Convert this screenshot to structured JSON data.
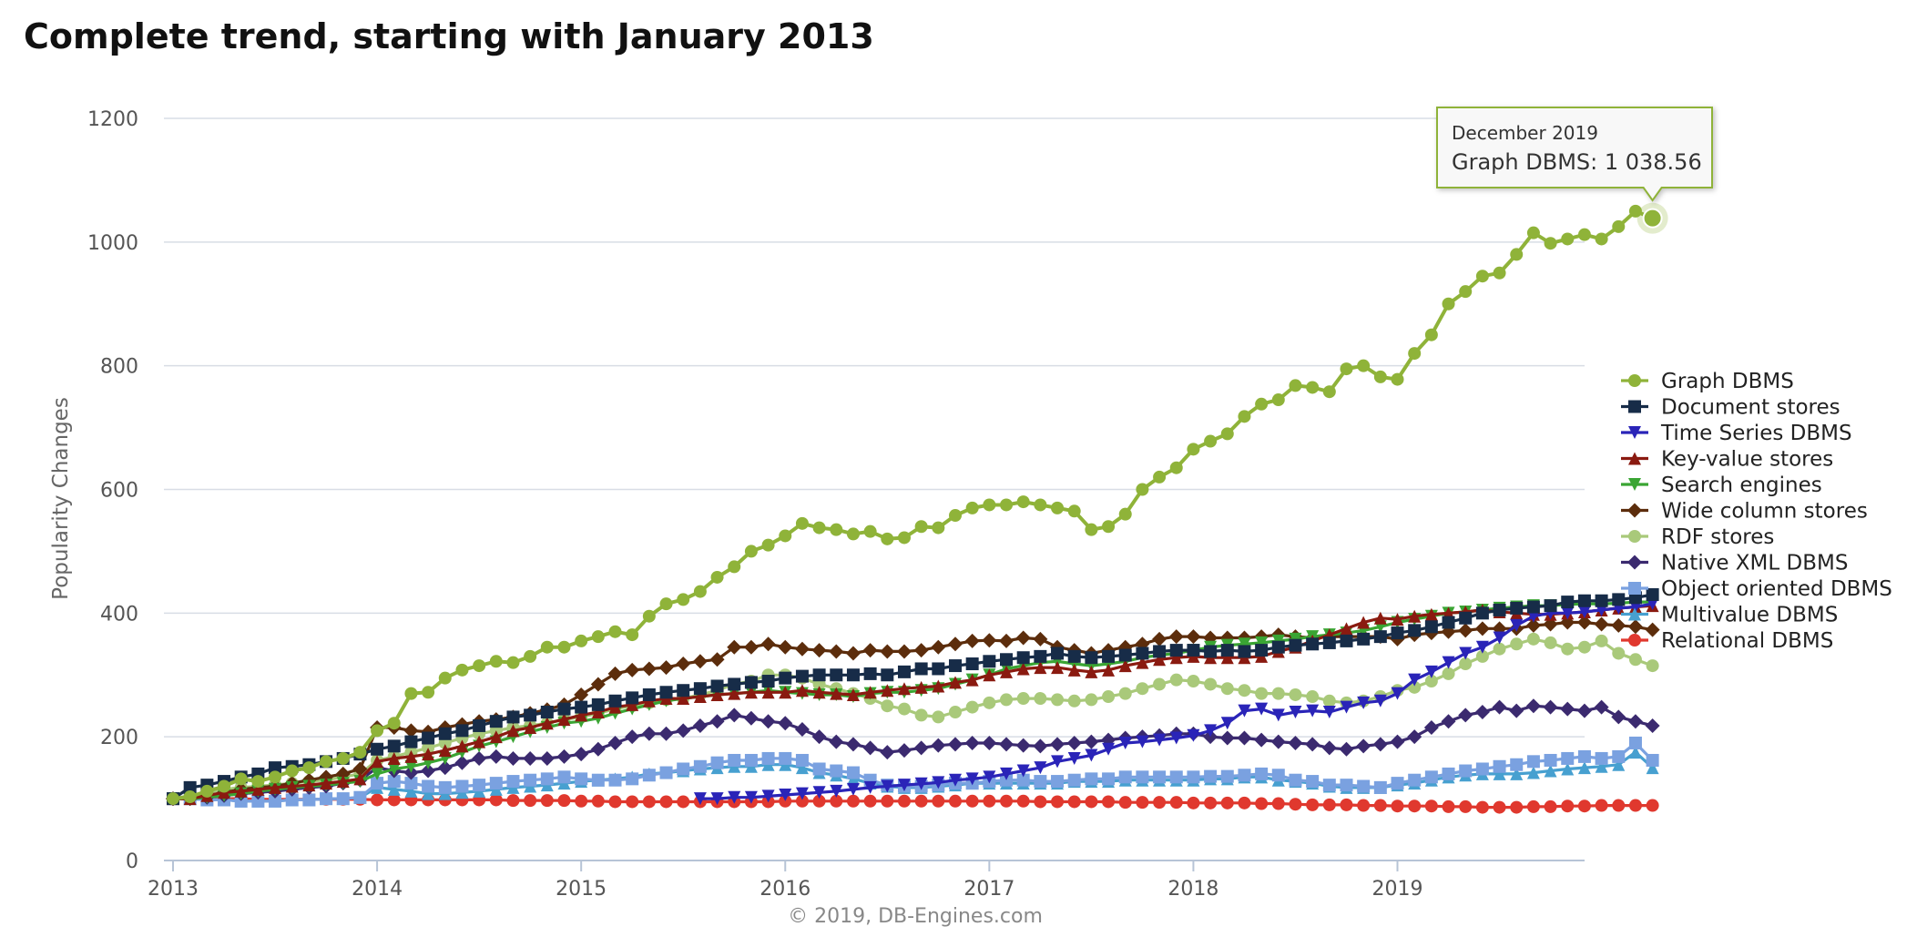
{
  "page": {
    "title": "Complete trend, starting with January 2013"
  },
  "chart_data": {
    "type": "line",
    "title": "Complete trend, starting with January 2013",
    "xlabel": "",
    "ylabel": "Popularity Changes",
    "xlim": [
      2013.0,
      2019.917
    ],
    "ylim": [
      0,
      1200
    ],
    "yticks": [
      0,
      200,
      400,
      600,
      800,
      1000,
      1200
    ],
    "xticks": [
      2013,
      2014,
      2015,
      2016,
      2017,
      2018,
      2019
    ],
    "xtick_labels": [
      "2013",
      "2014",
      "2015",
      "2016",
      "2017",
      "2018",
      "2019"
    ],
    "grid": true,
    "legend_position": "right",
    "credits": "© 2019, DB-Engines.com",
    "x_start": "2013-01",
    "x_step": "monthly",
    "tooltip": {
      "header": "December 2019",
      "series": "Graph DBMS",
      "value_label": "1 038.56",
      "value": 1038.56
    },
    "series": [
      {
        "name": "Graph DBMS",
        "color": "#8fb339",
        "marker": "circle",
        "values": [
          100,
          103,
          112,
          120,
          132,
          128,
          135,
          145,
          150,
          160,
          165,
          175,
          210,
          222,
          270,
          272,
          295,
          308,
          315,
          322,
          320,
          330,
          345,
          345,
          355,
          362,
          370,
          365,
          395,
          415,
          422,
          435,
          458,
          475,
          500,
          510,
          525,
          545,
          538,
          535,
          528,
          532,
          520,
          522,
          540,
          538,
          558,
          570,
          575,
          575,
          580,
          575,
          570,
          565,
          535,
          540,
          560,
          600,
          620,
          635,
          665,
          678,
          690,
          718,
          738,
          745,
          768,
          765,
          758,
          795,
          800,
          782,
          778,
          820,
          850,
          900,
          920,
          945,
          950,
          980,
          1015,
          998,
          1005,
          1012,
          1005,
          1025,
          1050,
          1038.56
        ]
      },
      {
        "name": "Document stores",
        "color": "#172c48",
        "marker": "square",
        "values": [
          100,
          118,
          122,
          128,
          135,
          140,
          150,
          152,
          155,
          160,
          165,
          172,
          180,
          185,
          192,
          198,
          205,
          210,
          218,
          225,
          232,
          235,
          240,
          245,
          248,
          252,
          258,
          263,
          268,
          272,
          275,
          278,
          282,
          285,
          288,
          290,
          295,
          298,
          300,
          300,
          300,
          302,
          300,
          305,
          310,
          310,
          315,
          318,
          322,
          325,
          328,
          330,
          335,
          330,
          328,
          330,
          332,
          335,
          338,
          340,
          340,
          338,
          340,
          338,
          340,
          345,
          348,
          350,
          352,
          355,
          358,
          362,
          368,
          372,
          378,
          385,
          392,
          400,
          405,
          408,
          410,
          412,
          418,
          420,
          420,
          422,
          425,
          430
        ]
      },
      {
        "name": "Time Series DBMS",
        "color": "#2a24b8",
        "marker": "triangle-down",
        "values": [
          null,
          null,
          null,
          null,
          null,
          null,
          null,
          null,
          null,
          null,
          null,
          null,
          null,
          null,
          null,
          null,
          null,
          null,
          null,
          null,
          null,
          null,
          null,
          null,
          null,
          null,
          null,
          null,
          null,
          null,
          null,
          100,
          100,
          102,
          102,
          104,
          106,
          108,
          110,
          112,
          115,
          118,
          120,
          122,
          124,
          126,
          130,
          132,
          135,
          140,
          145,
          150,
          160,
          165,
          170,
          180,
          190,
          192,
          195,
          198,
          202,
          210,
          222,
          242,
          245,
          235,
          240,
          242,
          240,
          248,
          255,
          258,
          270,
          292,
          305,
          320,
          335,
          345,
          360,
          380,
          395,
          400,
          400,
          402,
          405,
          408,
          410,
          415
        ]
      },
      {
        "name": "Key-value stores",
        "color": "#8a1a10",
        "marker": "triangle-up",
        "values": [
          100,
          100,
          105,
          110,
          112,
          115,
          118,
          120,
          122,
          125,
          128,
          132,
          160,
          165,
          168,
          172,
          178,
          185,
          192,
          200,
          210,
          215,
          222,
          228,
          235,
          240,
          248,
          252,
          258,
          262,
          262,
          265,
          268,
          270,
          272,
          272,
          272,
          275,
          272,
          270,
          268,
          272,
          275,
          278,
          280,
          282,
          288,
          292,
          300,
          305,
          310,
          312,
          312,
          308,
          305,
          308,
          315,
          320,
          325,
          328,
          330,
          328,
          328,
          328,
          330,
          338,
          345,
          355,
          365,
          375,
          385,
          392,
          390,
          395,
          398,
          400,
          402,
          405,
          402,
          400,
          398,
          398,
          400,
          402,
          405,
          408,
          410,
          412
        ]
      },
      {
        "name": "Search engines",
        "color": "#3aa533",
        "marker": "triangle-down",
        "values": [
          100,
          100,
          102,
          105,
          108,
          112,
          115,
          118,
          120,
          122,
          125,
          128,
          140,
          148,
          152,
          158,
          165,
          175,
          185,
          192,
          200,
          208,
          215,
          222,
          225,
          230,
          238,
          245,
          252,
          258,
          262,
          265,
          268,
          270,
          272,
          275,
          272,
          270,
          268,
          268,
          265,
          270,
          272,
          272,
          275,
          278,
          285,
          292,
          300,
          310,
          315,
          320,
          322,
          318,
          315,
          318,
          322,
          328,
          332,
          335,
          340,
          345,
          348,
          350,
          352,
          355,
          358,
          362,
          365,
          368,
          372,
          378,
          385,
          390,
          395,
          400,
          402,
          405,
          408,
          410,
          412,
          412,
          414,
          415,
          415,
          416,
          418,
          418
        ]
      },
      {
        "name": "Wide column stores",
        "color": "#5c2d0c",
        "marker": "diamond",
        "values": [
          100,
          100,
          105,
          110,
          115,
          118,
          120,
          125,
          130,
          135,
          140,
          148,
          215,
          215,
          210,
          208,
          215,
          220,
          225,
          228,
          232,
          238,
          244,
          252,
          268,
          285,
          302,
          308,
          310,
          312,
          318,
          322,
          325,
          345,
          345,
          350,
          345,
          342,
          340,
          338,
          335,
          340,
          338,
          338,
          340,
          345,
          350,
          355,
          356,
          355,
          360,
          358,
          345,
          340,
          335,
          340,
          345,
          350,
          358,
          362,
          362,
          360,
          360,
          360,
          362,
          365,
          362,
          360,
          362,
          362,
          362,
          362,
          358,
          365,
          368,
          370,
          372,
          375,
          375,
          375,
          380,
          382,
          385,
          385,
          382,
          380,
          378,
          373
        ]
      },
      {
        "name": "RDF stores",
        "color": "#a9c97a",
        "marker": "circle",
        "values": [
          100,
          105,
          110,
          115,
          118,
          120,
          122,
          125,
          128,
          130,
          135,
          140,
          162,
          168,
          175,
          182,
          190,
          198,
          205,
          210,
          215,
          218,
          222,
          228,
          232,
          238,
          245,
          250,
          255,
          260,
          262,
          268,
          275,
          285,
          290,
          300,
          300,
          295,
          285,
          278,
          270,
          262,
          250,
          245,
          235,
          232,
          240,
          248,
          255,
          260,
          262,
          262,
          260,
          258,
          260,
          265,
          270,
          278,
          285,
          292,
          290,
          285,
          278,
          275,
          270,
          270,
          268,
          265,
          258,
          255,
          258,
          265,
          275,
          280,
          290,
          302,
          318,
          330,
          342,
          350,
          358,
          352,
          342,
          345,
          355,
          335,
          325,
          315
        ]
      },
      {
        "name": "Native XML DBMS",
        "color": "#3b2a6f",
        "marker": "diamond",
        "values": [
          100,
          100,
          102,
          105,
          108,
          110,
          112,
          115,
          118,
          120,
          125,
          130,
          150,
          145,
          142,
          145,
          150,
          158,
          165,
          168,
          165,
          165,
          165,
          168,
          172,
          180,
          190,
          200,
          205,
          205,
          210,
          218,
          225,
          235,
          230,
          225,
          222,
          212,
          200,
          192,
          188,
          182,
          175,
          178,
          182,
          186,
          188,
          190,
          190,
          188,
          186,
          185,
          188,
          190,
          192,
          195,
          198,
          200,
          202,
          205,
          205,
          200,
          198,
          198,
          195,
          192,
          190,
          188,
          182,
          180,
          185,
          188,
          192,
          200,
          215,
          225,
          235,
          240,
          248,
          242,
          250,
          248,
          245,
          242,
          248,
          232,
          225,
          218
        ]
      },
      {
        "name": "Object oriented DBMS",
        "color": "#7aa1e0",
        "marker": "square",
        "values": [
          100,
          100,
          98,
          98,
          96,
          96,
          96,
          98,
          98,
          100,
          100,
          102,
          125,
          128,
          125,
          120,
          118,
          120,
          122,
          125,
          128,
          130,
          132,
          135,
          132,
          130,
          130,
          132,
          138,
          142,
          148,
          152,
          158,
          162,
          162,
          165,
          165,
          162,
          148,
          145,
          142,
          130,
          122,
          120,
          120,
          122,
          125,
          125,
          128,
          130,
          130,
          128,
          128,
          130,
          132,
          132,
          135,
          135,
          135,
          135,
          135,
          136,
          136,
          138,
          140,
          138,
          130,
          128,
          122,
          122,
          120,
          118,
          125,
          130,
          135,
          140,
          145,
          148,
          152,
          155,
          160,
          162,
          165,
          168,
          165,
          168,
          190,
          162
        ]
      },
      {
        "name": "Multivalue DBMS",
        "color": "#47a0d0",
        "marker": "triangle-up",
        "values": [
          100,
          100,
          98,
          98,
          96,
          96,
          96,
          98,
          98,
          100,
          100,
          102,
          118,
          115,
          112,
          108,
          108,
          110,
          112,
          115,
          118,
          120,
          122,
          125,
          128,
          130,
          132,
          135,
          140,
          142,
          145,
          148,
          150,
          152,
          152,
          155,
          155,
          150,
          142,
          138,
          132,
          125,
          120,
          118,
          118,
          120,
          122,
          125,
          125,
          125,
          125,
          125,
          125,
          128,
          128,
          128,
          130,
          130,
          130,
          130,
          130,
          132,
          132,
          135,
          135,
          130,
          128,
          125,
          120,
          118,
          118,
          118,
          122,
          125,
          130,
          135,
          138,
          140,
          140,
          140,
          142,
          145,
          148,
          150,
          152,
          155,
          175,
          150
        ]
      },
      {
        "name": "Relational DBMS",
        "color": "#e0382e",
        "marker": "circle",
        "values": [
          100,
          100,
          100,
          100,
          100,
          99,
          99,
          99,
          99,
          99,
          99,
          99,
          98,
          98,
          98,
          98,
          98,
          98,
          98,
          98,
          97,
          97,
          97,
          97,
          96,
          96,
          95,
          95,
          95,
          95,
          95,
          95,
          95,
          95,
          95,
          95,
          96,
          96,
          96,
          96,
          96,
          96,
          96,
          96,
          96,
          96,
          96,
          96,
          96,
          96,
          96,
          95,
          95,
          95,
          95,
          95,
          94,
          94,
          94,
          94,
          93,
          93,
          93,
          93,
          92,
          92,
          91,
          90,
          90,
          90,
          89,
          89,
          88,
          88,
          88,
          87,
          87,
          86,
          86,
          86,
          87,
          87,
          88,
          88,
          89,
          89,
          89,
          89
        ]
      }
    ]
  }
}
